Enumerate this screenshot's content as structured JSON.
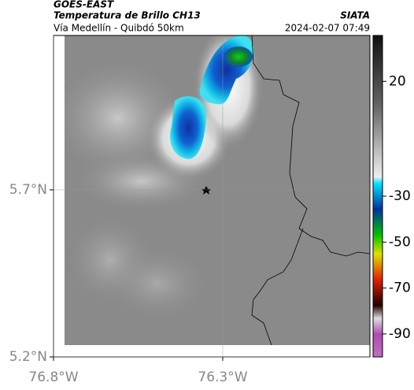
{
  "header": {
    "source": "GOES-EAST",
    "product": "Temperatura de Brillo CH13",
    "route": "Vía Medellín - Quibdó 50km",
    "org": "SIATA",
    "datetime": "2024-02-07 07:49"
  },
  "map": {
    "xlim": [
      -76.8,
      -75.865
    ],
    "ylim": [
      5.2,
      6.162
    ],
    "xticks": [
      {
        "value": -76.8,
        "label": "76.8°W"
      },
      {
        "value": -76.3,
        "label": "76.3°W"
      }
    ],
    "yticks": [
      {
        "value": 5.2,
        "label": "5.2°N"
      },
      {
        "value": 5.7,
        "label": "5.7°N"
      }
    ],
    "grid": true,
    "colorbar": {
      "lim": [
        -100,
        40
      ],
      "ticks": [
        20,
        -30,
        -50,
        -70,
        -90
      ]
    }
  }
}
